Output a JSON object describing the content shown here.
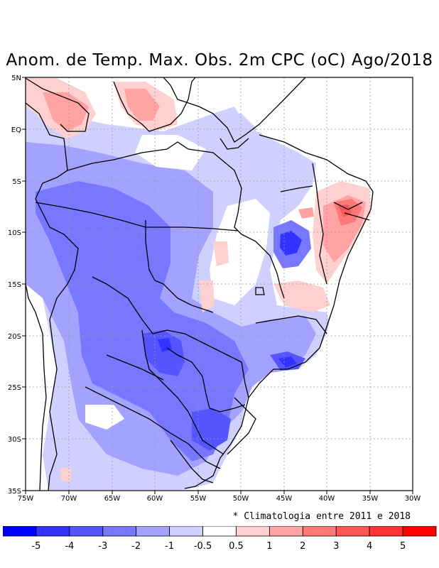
{
  "title": "Anom. de Temp. Max. Obs. 2m CPC (oC) Ago/2018",
  "footnote": "* Climatologia entre 2011 e 2018",
  "axes": {
    "lon_labels": [
      "75W",
      "70W",
      "65W",
      "60W",
      "55W",
      "50W",
      "45W",
      "40W",
      "35W",
      "30W"
    ],
    "lat_labels": [
      "5N",
      "EQ",
      "5S",
      "10S",
      "15S",
      "20S",
      "25S",
      "30S",
      "35S"
    ]
  },
  "colorbar": {
    "colors": [
      "#0000ff",
      "#3333ff",
      "#5555ff",
      "#7777ff",
      "#a3a3ff",
      "#d0d0ff",
      "#ffffff",
      "#ffd0d0",
      "#ffa3a3",
      "#ff7777",
      "#ff5555",
      "#ff3333",
      "#ff0000"
    ],
    "tick_labels": [
      "-5",
      "-4",
      "-3",
      "-2",
      "-1",
      "-0.5",
      "0.5",
      "1",
      "2",
      "3",
      "4",
      "5"
    ]
  },
  "colors": {
    "border": "#000000",
    "grid": "#9a9a9a"
  }
}
